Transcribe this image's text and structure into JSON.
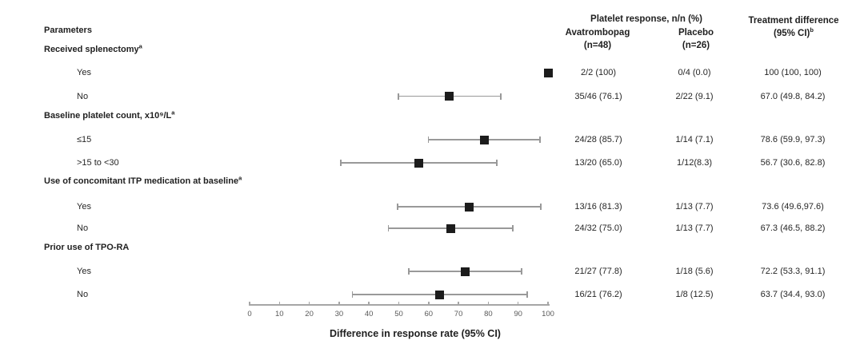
{
  "headers": {
    "parameters": "Parameters",
    "platelet_response": "Platelet response, n/n (%)",
    "avatrombopag_line1": "Avatrombopag",
    "avatrombopag_line2": "(n=48)",
    "placebo_line1": "Placebo",
    "placebo_line2": "(n=26)",
    "diff_line1": "Treatment difference",
    "diff_line2": "(95% CI)",
    "diff_sup": "b"
  },
  "colors": {
    "marker": "#1c1c1c",
    "ci_line": "#999999",
    "axis_line": "#a6a6a6",
    "text": "#262626",
    "tick_label": "#595959"
  },
  "chart_data": {
    "type": "scatter",
    "variant": "forest-plot",
    "title": "",
    "xlabel": "Difference in response rate (95% CI)",
    "xlim": [
      0,
      100
    ],
    "xticks": [
      0,
      10,
      20,
      30,
      40,
      50,
      60,
      70,
      80,
      90,
      100
    ],
    "grid": false,
    "groups": [
      {
        "label": "Received splenectomy",
        "sup": "a",
        "items": [
          {
            "label": "Yes",
            "estimate": 100,
            "ci_low": 100,
            "ci_high": 100,
            "avatrombopag": "2/2 (100)",
            "placebo": "0/4 (0.0)",
            "difference": "100 (100, 100)"
          },
          {
            "label": "No",
            "estimate": 67.0,
            "ci_low": 49.8,
            "ci_high": 84.2,
            "avatrombopag": "35/46 (76.1)",
            "placebo": "2/22 (9.1)",
            "difference": "67.0 (49.8, 84.2)"
          }
        ]
      },
      {
        "label": "Baseline platelet count, x10⁹/L",
        "sup": "a",
        "items": [
          {
            "label": "≤15",
            "estimate": 78.6,
            "ci_low": 59.9,
            "ci_high": 97.3,
            "avatrombopag": "24/28 (85.7)",
            "placebo": "1/14 (7.1)",
            "difference": "78.6 (59.9, 97.3)"
          },
          {
            "label": ">15 to <30",
            "estimate": 56.7,
            "ci_low": 30.6,
            "ci_high": 82.8,
            "avatrombopag": "13/20 (65.0)",
            "placebo": "1/12(8.3)",
            "difference": "56.7 (30.6, 82.8)"
          }
        ]
      },
      {
        "label": "Use of concomitant ITP medication at baseline",
        "sup": "a",
        "items": [
          {
            "label": "Yes",
            "estimate": 73.6,
            "ci_low": 49.6,
            "ci_high": 97.6,
            "avatrombopag": "13/16 (81.3)",
            "placebo": "1/13 (7.7)",
            "difference": "73.6 (49.6,97.6)"
          },
          {
            "label": "No",
            "estimate": 67.3,
            "ci_low": 46.5,
            "ci_high": 88.2,
            "avatrombopag": "24/32 (75.0)",
            "placebo": "1/13 (7.7)",
            "difference": "67.3 (46.5, 88.2)"
          }
        ]
      },
      {
        "label": "Prior use of TPO-RA",
        "sup": "",
        "items": [
          {
            "label": "Yes",
            "estimate": 72.2,
            "ci_low": 53.3,
            "ci_high": 91.1,
            "avatrombopag": "21/27 (77.8)",
            "placebo": "1/18 (5.6)",
            "difference": "72.2 (53.3, 91.1)"
          },
          {
            "label": "No",
            "estimate": 63.7,
            "ci_low": 34.4,
            "ci_high": 93.0,
            "avatrombopag": "16/21 (76.2)",
            "placebo": "1/8 (12.5)",
            "difference": "63.7 (34.4, 93.0)"
          }
        ]
      }
    ]
  }
}
